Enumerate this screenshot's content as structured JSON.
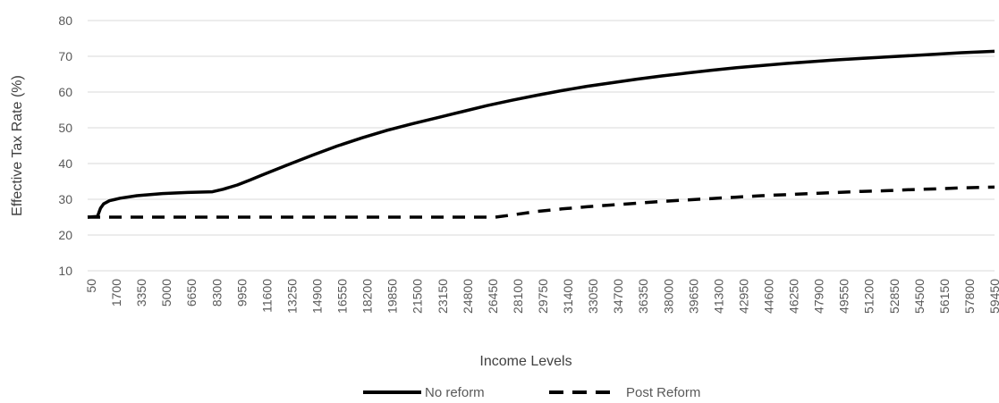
{
  "chart_data": {
    "type": "line",
    "title": "",
    "xlabel": "Income Levels",
    "ylabel": "Effective Tax Rate (%)",
    "ylim": [
      10,
      80
    ],
    "yticks": [
      10,
      20,
      30,
      40,
      50,
      60,
      70,
      80
    ],
    "grid": "horizontal",
    "legend_position": "bottom",
    "xlim": [
      50,
      60000
    ],
    "xtick_labels": [
      "50",
      "1700",
      "3350",
      "5000",
      "6650",
      "8300",
      "9950",
      "11600",
      "13250",
      "14900",
      "16550",
      "18200",
      "19850",
      "21500",
      "23150",
      "24800",
      "26450",
      "28100",
      "29750",
      "31400",
      "33050",
      "34700",
      "36350",
      "38000",
      "39650",
      "41300",
      "42950",
      "44600",
      "46250",
      "47900",
      "49550",
      "51200",
      "52850",
      "54500",
      "56150",
      "57800",
      "59450"
    ],
    "series": [
      {
        "name": "No reform",
        "style": "solid",
        "color": "#000000",
        "points": [
          [
            50,
            25
          ],
          [
            700,
            25.2
          ],
          [
            900,
            27.5
          ],
          [
            1100,
            28.7
          ],
          [
            1500,
            29.6
          ],
          [
            2200,
            30.3
          ],
          [
            3300,
            31
          ],
          [
            5000,
            31.6
          ],
          [
            6650,
            31.9
          ],
          [
            8300,
            32.1
          ],
          [
            9000,
            32.8
          ],
          [
            9950,
            34
          ],
          [
            10800,
            35.4
          ],
          [
            11600,
            36.8
          ],
          [
            13250,
            39.6
          ],
          [
            14900,
            42.3
          ],
          [
            16550,
            44.9
          ],
          [
            18200,
            47.2
          ],
          [
            19850,
            49.3
          ],
          [
            21500,
            51.1
          ],
          [
            23150,
            52.8
          ],
          [
            24800,
            54.5
          ],
          [
            26450,
            56.2
          ],
          [
            28100,
            57.7
          ],
          [
            29750,
            59.1
          ],
          [
            31400,
            60.4
          ],
          [
            33050,
            61.6
          ],
          [
            34700,
            62.6
          ],
          [
            36350,
            63.6
          ],
          [
            38000,
            64.5
          ],
          [
            39650,
            65.3
          ],
          [
            41300,
            66.1
          ],
          [
            42950,
            66.8
          ],
          [
            44600,
            67.4
          ],
          [
            46250,
            68
          ],
          [
            47900,
            68.5
          ],
          [
            49550,
            69
          ],
          [
            51200,
            69.4
          ],
          [
            52850,
            69.8
          ],
          [
            54500,
            70.2
          ],
          [
            56150,
            70.6
          ],
          [
            57800,
            71
          ],
          [
            60000,
            71.4
          ]
        ]
      },
      {
        "name": "Post Reform",
        "style": "dashed",
        "color": "#000000",
        "points": [
          [
            50,
            25
          ],
          [
            10000,
            25
          ],
          [
            20000,
            25
          ],
          [
            27000,
            25
          ],
          [
            28100,
            25.6
          ],
          [
            29750,
            26.6
          ],
          [
            31400,
            27.3
          ],
          [
            33050,
            27.9
          ],
          [
            34700,
            28.4
          ],
          [
            36350,
            28.9
          ],
          [
            38000,
            29.4
          ],
          [
            39650,
            29.8
          ],
          [
            41300,
            30.2
          ],
          [
            42950,
            30.6
          ],
          [
            44600,
            31
          ],
          [
            46250,
            31.3
          ],
          [
            47900,
            31.6
          ],
          [
            49550,
            31.9
          ],
          [
            51200,
            32.2
          ],
          [
            52850,
            32.4
          ],
          [
            54500,
            32.7
          ],
          [
            56150,
            32.9
          ],
          [
            57800,
            33.2
          ],
          [
            60000,
            33.4
          ]
        ]
      }
    ]
  }
}
